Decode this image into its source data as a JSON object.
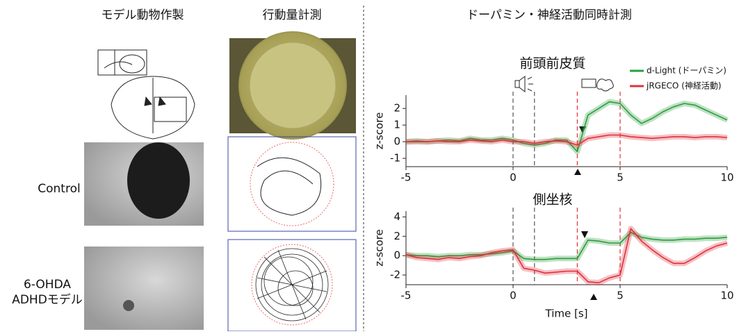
{
  "headers": {
    "model": "モデル動物作製",
    "activity": "行動量計測",
    "recording": "ドーパミン・神経活動同時計測"
  },
  "row_labels": {
    "control": "Control",
    "model_1": "6-OHDA",
    "model_2": "ADHDモデル"
  },
  "chart_data": [
    {
      "type": "line",
      "title": "前頭前皮質",
      "ylabel": "z-score",
      "legend": "upper right",
      "x": [
        -5,
        -4.5,
        -4,
        -3.5,
        -3,
        -2.5,
        -2,
        -1.5,
        -1,
        -0.5,
        0,
        0.5,
        1,
        1.5,
        2,
        2.5,
        3,
        3.5,
        4,
        4.5,
        5,
        5.5,
        6,
        6.5,
        7,
        7.5,
        8,
        8.5,
        9,
        9.5,
        10
      ],
      "xlim": [
        -5,
        10
      ],
      "xticks": [
        -5,
        0,
        5,
        10
      ],
      "ylim": [
        -1.5,
        2.8
      ],
      "yticks": [
        -1,
        0,
        1,
        2
      ],
      "events": [
        {
          "x": 0,
          "color": "#555555"
        },
        {
          "x": 1,
          "color": "#555555"
        },
        {
          "x": 3,
          "color": "#e0303a"
        },
        {
          "x": 5,
          "color": "#e0303a"
        }
      ],
      "series": [
        {
          "name": "d-Light (ドーパミン)",
          "color": "#2a9d3a",
          "values": [
            0,
            0.05,
            0,
            0.05,
            0.1,
            0.05,
            0.2,
            0.1,
            0.1,
            0.2,
            0.1,
            -0.1,
            -0.2,
            -0.1,
            0.1,
            0.1,
            -0.6,
            1.6,
            2.0,
            2.4,
            2.3,
            1.6,
            1.1,
            1.4,
            1.8,
            2.1,
            2.3,
            2.2,
            1.9,
            1.6,
            1.3
          ]
        },
        {
          "name": "jRGECO (神経活動)",
          "color": "#e0303a",
          "values": [
            0,
            0,
            0,
            0.05,
            0,
            0,
            0.1,
            0.05,
            0,
            0.1,
            0,
            0,
            -0.1,
            0,
            0.05,
            0,
            -0.2,
            0.2,
            0.3,
            0.4,
            0.4,
            0.3,
            0.25,
            0.2,
            0.25,
            0.3,
            0.3,
            0.25,
            0.3,
            0.3,
            0.25
          ]
        }
      ]
    },
    {
      "type": "line",
      "title": "側坐核",
      "ylabel": "z-score",
      "xlabel": "Time [s]",
      "x": [
        -5,
        -4.5,
        -4,
        -3.5,
        -3,
        -2.5,
        -2,
        -1.5,
        -1,
        -0.5,
        0,
        0.5,
        1,
        1.5,
        2,
        2.5,
        3,
        3.5,
        4,
        4.5,
        5,
        5.5,
        6,
        6.5,
        7,
        7.5,
        8,
        8.5,
        9,
        9.5,
        10
      ],
      "xlim": [
        -5,
        10
      ],
      "xticks": [
        -5,
        0,
        5,
        10
      ],
      "ylim": [
        -3,
        4.6
      ],
      "yticks": [
        -2,
        0,
        2,
        4
      ],
      "events": [
        {
          "x": 0,
          "color": "#555555"
        },
        {
          "x": 1,
          "color": "#555555"
        },
        {
          "x": 3,
          "color": "#e0303a"
        },
        {
          "x": 5,
          "color": "#e0303a"
        }
      ],
      "series": [
        {
          "color": "#2a9d3a",
          "values": [
            0.1,
            0,
            0,
            -0.1,
            0,
            0,
            0.1,
            0.1,
            0.2,
            0.3,
            0.5,
            -0.3,
            -0.4,
            -0.4,
            -0.3,
            -0.3,
            -0.3,
            1.6,
            1.5,
            1.3,
            1.3,
            2.4,
            1.9,
            1.7,
            1.6,
            1.6,
            1.7,
            1.7,
            1.8,
            1.8,
            1.9
          ]
        },
        {
          "color": "#e0303a",
          "values": [
            0.1,
            -0.2,
            -0.3,
            -0.4,
            -0.2,
            -0.3,
            -0.1,
            0,
            0.3,
            0.5,
            0.6,
            -1.3,
            -1.5,
            -1.8,
            -1.7,
            -1.6,
            -1.6,
            -2.7,
            -2.8,
            -2.3,
            -2.0,
            2.8,
            1.5,
            0.6,
            -0.2,
            -0.8,
            -0.8,
            -0.2,
            0.5,
            1.0,
            1.3
          ]
        }
      ]
    }
  ]
}
